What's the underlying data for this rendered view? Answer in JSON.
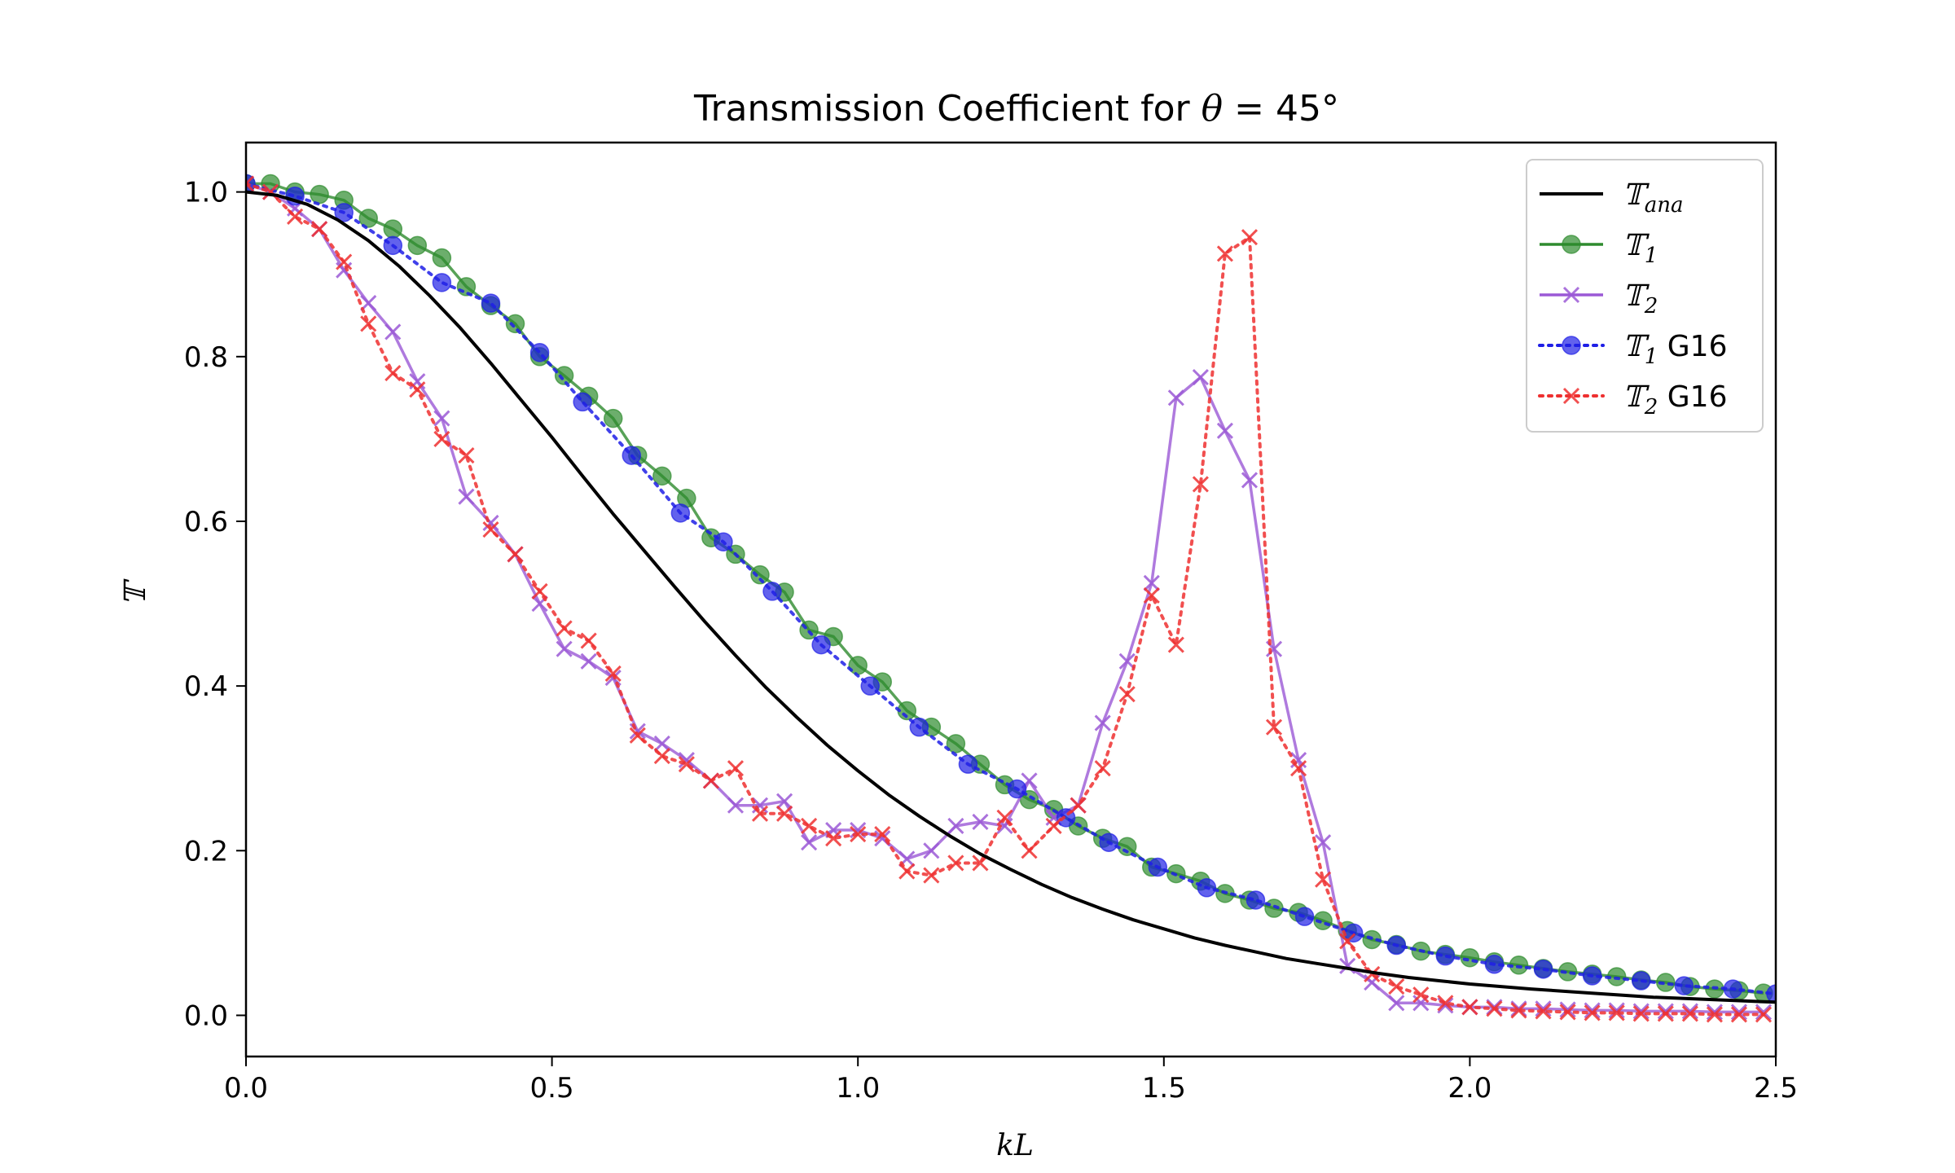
{
  "chart_data": {
    "type": "line",
    "title": "Transmission Coefficient for θ = 45°",
    "title_parts": {
      "prefix": "Transmission Coefficient for ",
      "symbol": "θ",
      "suffix": " = 45°"
    },
    "xlabel": "kL",
    "ylabel": "𝕋",
    "xlim": [
      0.0,
      2.5
    ],
    "ylim": [
      -0.05,
      1.06
    ],
    "x_ticks": [
      "0.0",
      "0.5",
      "1.0",
      "1.5",
      "2.0",
      "2.5"
    ],
    "y_ticks": [
      "0.0",
      "0.2",
      "0.4",
      "0.6",
      "0.8",
      "1.0"
    ],
    "grid": false,
    "legend_position": "top-right",
    "series": [
      {
        "name": "𝕋ana",
        "label_main": "𝕋",
        "label_sub": "ana",
        "label_suffix": "",
        "color": "#000000",
        "line": "solid",
        "marker": "none",
        "x": [
          0,
          0.05,
          0.1,
          0.15,
          0.2,
          0.25,
          0.3,
          0.35,
          0.4,
          0.45,
          0.5,
          0.55,
          0.6,
          0.65,
          0.7,
          0.75,
          0.8,
          0.85,
          0.9,
          0.95,
          1.0,
          1.05,
          1.1,
          1.15,
          1.2,
          1.25,
          1.3,
          1.35,
          1.4,
          1.45,
          1.5,
          1.55,
          1.6,
          1.65,
          1.7,
          1.75,
          1.8,
          1.85,
          1.9,
          1.95,
          2.0,
          2.1,
          2.2,
          2.3,
          2.4,
          2.5
        ],
        "y": [
          1.0,
          0.996,
          0.985,
          0.966,
          0.941,
          0.91,
          0.874,
          0.835,
          0.792,
          0.747,
          0.702,
          0.655,
          0.609,
          0.565,
          0.521,
          0.478,
          0.437,
          0.398,
          0.362,
          0.328,
          0.297,
          0.268,
          0.242,
          0.218,
          0.196,
          0.177,
          0.159,
          0.143,
          0.129,
          0.116,
          0.105,
          0.094,
          0.085,
          0.077,
          0.069,
          0.063,
          0.057,
          0.051,
          0.046,
          0.042,
          0.038,
          0.032,
          0.027,
          0.022,
          0.019,
          0.016
        ]
      },
      {
        "name": "𝕋1",
        "label_main": "𝕋",
        "label_sub": "1",
        "label_suffix": "",
        "color": "#2e8b2e",
        "line": "solid",
        "marker": "circle",
        "x": [
          0.0,
          0.04,
          0.08,
          0.12,
          0.16,
          0.2,
          0.24,
          0.28,
          0.32,
          0.36,
          0.4,
          0.44,
          0.48,
          0.52,
          0.56,
          0.6,
          0.64,
          0.68,
          0.72,
          0.76,
          0.8,
          0.84,
          0.88,
          0.92,
          0.96,
          1.0,
          1.04,
          1.08,
          1.12,
          1.16,
          1.2,
          1.24,
          1.28,
          1.32,
          1.36,
          1.4,
          1.44,
          1.48,
          1.52,
          1.56,
          1.6,
          1.64,
          1.68,
          1.72,
          1.76,
          1.8,
          1.84,
          1.88,
          1.92,
          1.96,
          2.0,
          2.04,
          2.08,
          2.12,
          2.16,
          2.2,
          2.24,
          2.28,
          2.32,
          2.36,
          2.4,
          2.44,
          2.48
        ],
        "y": [
          1.01,
          1.01,
          1.0,
          0.997,
          0.99,
          0.968,
          0.955,
          0.935,
          0.92,
          0.885,
          0.862,
          0.84,
          0.8,
          0.777,
          0.752,
          0.725,
          0.68,
          0.655,
          0.628,
          0.58,
          0.56,
          0.535,
          0.514,
          0.468,
          0.46,
          0.425,
          0.405,
          0.37,
          0.35,
          0.33,
          0.305,
          0.28,
          0.262,
          0.25,
          0.23,
          0.215,
          0.205,
          0.18,
          0.172,
          0.163,
          0.148,
          0.14,
          0.13,
          0.125,
          0.115,
          0.103,
          0.092,
          0.086,
          0.078,
          0.074,
          0.07,
          0.065,
          0.061,
          0.057,
          0.053,
          0.05,
          0.047,
          0.043,
          0.04,
          0.035,
          0.032,
          0.03,
          0.027
        ]
      },
      {
        "name": "𝕋2",
        "label_main": "𝕋",
        "label_sub": "2",
        "label_suffix": "",
        "color": "#9b59d6",
        "line": "solid",
        "marker": "x",
        "x": [
          0.0,
          0.04,
          0.08,
          0.12,
          0.16,
          0.2,
          0.24,
          0.28,
          0.32,
          0.36,
          0.4,
          0.44,
          0.48,
          0.52,
          0.56,
          0.6,
          0.64,
          0.68,
          0.72,
          0.76,
          0.8,
          0.84,
          0.88,
          0.92,
          0.96,
          1.0,
          1.04,
          1.08,
          1.12,
          1.16,
          1.2,
          1.24,
          1.28,
          1.32,
          1.36,
          1.4,
          1.44,
          1.48,
          1.52,
          1.56,
          1.6,
          1.64,
          1.68,
          1.72,
          1.76,
          1.8,
          1.84,
          1.88,
          1.92,
          1.96,
          2.0,
          2.04,
          2.08,
          2.12,
          2.16,
          2.2,
          2.24,
          2.28,
          2.32,
          2.36,
          2.4,
          2.44,
          2.48
        ],
        "y": [
          1.01,
          1.0,
          0.98,
          0.955,
          0.905,
          0.865,
          0.83,
          0.77,
          0.725,
          0.63,
          0.598,
          0.56,
          0.5,
          0.445,
          0.43,
          0.41,
          0.345,
          0.33,
          0.31,
          0.285,
          0.255,
          0.255,
          0.26,
          0.21,
          0.225,
          0.225,
          0.215,
          0.19,
          0.2,
          0.23,
          0.235,
          0.23,
          0.285,
          0.24,
          0.255,
          0.355,
          0.43,
          0.525,
          0.75,
          0.775,
          0.71,
          0.65,
          0.445,
          0.31,
          0.21,
          0.06,
          0.04,
          0.015,
          0.015,
          0.012,
          0.01,
          0.01,
          0.008,
          0.008,
          0.007,
          0.006,
          0.006,
          0.005,
          0.005,
          0.005,
          0.004,
          0.004,
          0.004
        ]
      },
      {
        "name": "𝕋1 G16",
        "label_main": "𝕋",
        "label_sub": "1",
        "label_suffix": " G16",
        "color": "#1f1fe6",
        "line": "dotted",
        "marker": "circle",
        "x": [
          0.0,
          0.08,
          0.16,
          0.24,
          0.32,
          0.4,
          0.48,
          0.55,
          0.63,
          0.71,
          0.78,
          0.86,
          0.94,
          1.02,
          1.1,
          1.18,
          1.26,
          1.34,
          1.41,
          1.49,
          1.57,
          1.65,
          1.73,
          1.81,
          1.88,
          1.96,
          2.04,
          2.12,
          2.2,
          2.28,
          2.35,
          2.43,
          2.5
        ],
        "y": [
          1.01,
          0.995,
          0.975,
          0.935,
          0.89,
          0.865,
          0.805,
          0.745,
          0.68,
          0.61,
          0.575,
          0.515,
          0.45,
          0.4,
          0.35,
          0.305,
          0.275,
          0.24,
          0.21,
          0.18,
          0.155,
          0.14,
          0.12,
          0.1,
          0.085,
          0.072,
          0.062,
          0.056,
          0.048,
          0.042,
          0.036,
          0.032,
          0.026
        ]
      },
      {
        "name": "𝕋2 G16",
        "label_main": "𝕋",
        "label_sub": "2",
        "label_suffix": " G16",
        "color": "#ee3030",
        "line": "dotted",
        "marker": "x",
        "x": [
          0.0,
          0.04,
          0.08,
          0.12,
          0.16,
          0.2,
          0.24,
          0.28,
          0.32,
          0.36,
          0.4,
          0.44,
          0.48,
          0.52,
          0.56,
          0.6,
          0.64,
          0.68,
          0.72,
          0.76,
          0.8,
          0.84,
          0.88,
          0.92,
          0.96,
          1.0,
          1.04,
          1.08,
          1.12,
          1.16,
          1.2,
          1.24,
          1.28,
          1.32,
          1.36,
          1.4,
          1.44,
          1.48,
          1.52,
          1.56,
          1.6,
          1.64,
          1.68,
          1.72,
          1.76,
          1.8,
          1.84,
          1.88,
          1.92,
          1.96,
          2.0,
          2.04,
          2.08,
          2.12,
          2.16,
          2.2,
          2.24,
          2.28,
          2.32,
          2.36,
          2.4,
          2.44,
          2.48
        ],
        "y": [
          1.01,
          1.0,
          0.97,
          0.955,
          0.915,
          0.84,
          0.78,
          0.76,
          0.7,
          0.68,
          0.59,
          0.56,
          0.515,
          0.47,
          0.455,
          0.415,
          0.34,
          0.315,
          0.305,
          0.285,
          0.3,
          0.245,
          0.245,
          0.23,
          0.215,
          0.22,
          0.22,
          0.175,
          0.17,
          0.185,
          0.185,
          0.24,
          0.2,
          0.23,
          0.255,
          0.3,
          0.39,
          0.51,
          0.45,
          0.645,
          0.925,
          0.945,
          0.35,
          0.3,
          0.165,
          0.09,
          0.05,
          0.035,
          0.025,
          0.015,
          0.01,
          0.008,
          0.006,
          0.005,
          0.004,
          0.003,
          0.003,
          0.002,
          0.002,
          0.002,
          0.001,
          0.001,
          0.001
        ]
      }
    ]
  }
}
